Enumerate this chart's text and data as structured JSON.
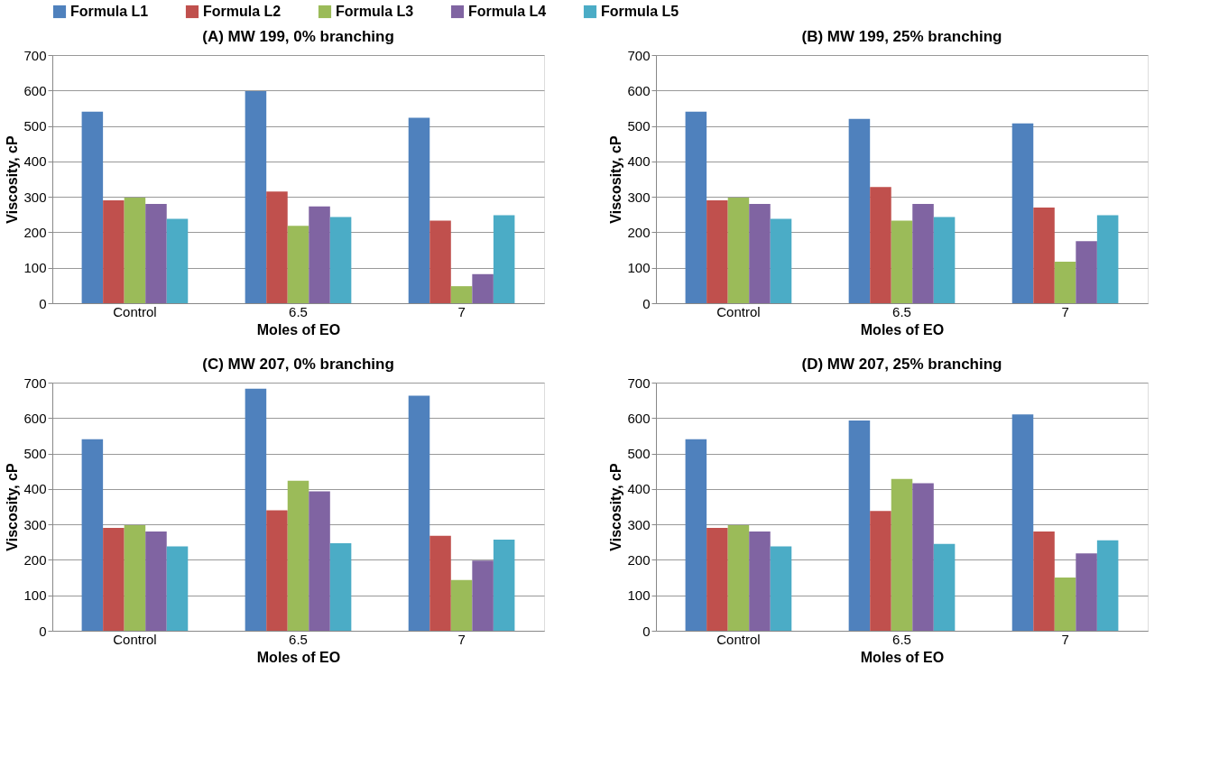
{
  "chart_data": [
    {
      "type": "bar",
      "title": "(A) MW 199, 0% branching",
      "xlabel": "Moles of EO",
      "ylabel": "Viscosity, cP",
      "categories": [
        "Control",
        "6.5",
        "7"
      ],
      "ylim": [
        0,
        700
      ],
      "yticks": [
        0,
        100,
        200,
        300,
        400,
        500,
        600,
        700
      ],
      "grid": "y",
      "legend": "top",
      "series": [
        {
          "name": "Formula L1",
          "color": "#4f81bd",
          "values": [
            540,
            598,
            523
          ]
        },
        {
          "name": "Formula L2",
          "color": "#c0504d",
          "values": [
            290,
            315,
            233
          ]
        },
        {
          "name": "Formula L3",
          "color": "#9bbb59",
          "values": [
            298,
            218,
            48
          ]
        },
        {
          "name": "Formula L4",
          "color": "#8064a2",
          "values": [
            280,
            273,
            82
          ]
        },
        {
          "name": "Formula L5",
          "color": "#4bacc6",
          "values": [
            238,
            243,
            248
          ]
        }
      ]
    },
    {
      "type": "bar",
      "title": "(B) MW 199, 25% branching",
      "xlabel": "Moles of EO",
      "ylabel": "Viscosity, cP",
      "categories": [
        "Control",
        "6.5",
        "7"
      ],
      "ylim": [
        0,
        700
      ],
      "yticks": [
        0,
        100,
        200,
        300,
        400,
        500,
        600,
        700
      ],
      "grid": "y",
      "series": [
        {
          "name": "Formula L1",
          "color": "#4f81bd",
          "values": [
            540,
            520,
            507
          ]
        },
        {
          "name": "Formula L2",
          "color": "#c0504d",
          "values": [
            290,
            328,
            270
          ]
        },
        {
          "name": "Formula L3",
          "color": "#9bbb59",
          "values": [
            298,
            233,
            117
          ]
        },
        {
          "name": "Formula L4",
          "color": "#8064a2",
          "values": [
            280,
            280,
            175
          ]
        },
        {
          "name": "Formula L5",
          "color": "#4bacc6",
          "values": [
            238,
            243,
            248
          ]
        }
      ]
    },
    {
      "type": "bar",
      "title": "(C) MW 207, 0% branching",
      "xlabel": "Moles of EO",
      "ylabel": "Viscosity, cP",
      "categories": [
        "Control",
        "6.5",
        "7"
      ],
      "ylim": [
        0,
        700
      ],
      "yticks": [
        0,
        100,
        200,
        300,
        400,
        500,
        600,
        700
      ],
      "grid": "y",
      "series": [
        {
          "name": "Formula L1",
          "color": "#4f81bd",
          "values": [
            540,
            683,
            663
          ]
        },
        {
          "name": "Formula L2",
          "color": "#c0504d",
          "values": [
            290,
            340,
            268
          ]
        },
        {
          "name": "Formula L3",
          "color": "#9bbb59",
          "values": [
            298,
            423,
            143
          ]
        },
        {
          "name": "Formula L4",
          "color": "#8064a2",
          "values": [
            280,
            393,
            198
          ]
        },
        {
          "name": "Formula L5",
          "color": "#4bacc6",
          "values": [
            238,
            247,
            257
          ]
        }
      ]
    },
    {
      "type": "bar",
      "title": "(D) MW 207, 25% branching",
      "xlabel": "Moles of EO",
      "ylabel": "Viscosity, cP",
      "categories": [
        "Control",
        "6.5",
        "7"
      ],
      "ylim": [
        0,
        700
      ],
      "yticks": [
        0,
        100,
        200,
        300,
        400,
        500,
        600,
        700
      ],
      "grid": "y",
      "series": [
        {
          "name": "Formula L1",
          "color": "#4f81bd",
          "values": [
            540,
            593,
            610
          ]
        },
        {
          "name": "Formula L2",
          "color": "#c0504d",
          "values": [
            290,
            338,
            280
          ]
        },
        {
          "name": "Formula L3",
          "color": "#9bbb59",
          "values": [
            298,
            428,
            150
          ]
        },
        {
          "name": "Formula L4",
          "color": "#8064a2",
          "values": [
            280,
            416,
            218
          ]
        },
        {
          "name": "Formula L5",
          "color": "#4bacc6",
          "values": [
            238,
            245,
            255
          ]
        }
      ]
    }
  ]
}
